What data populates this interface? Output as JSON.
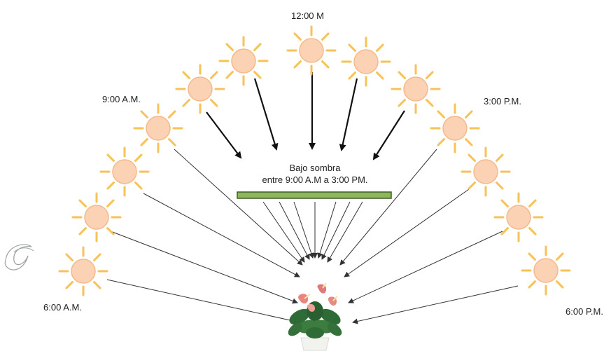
{
  "time_labels": {
    "noon": "12:00 M",
    "nine_am": "9:00 A.M.",
    "three_pm": "3:00 P.M.",
    "six_am": "6:00 A.M.",
    "six_pm": "6:00 P.M."
  },
  "shade_caption": {
    "line1": "Bajo sombra",
    "line2": "entre 9:00 A.M a 3:00 PM."
  },
  "colors": {
    "sun_fill": "#fbd2b3",
    "sun_stroke": "#f5b98c",
    "sun_rays": "#f7c257",
    "shade_bar": "#8cb85a",
    "shade_bar_border": "#3e5e25",
    "arrow_dark": "#111111",
    "arrow_light": "#333333"
  },
  "icons": {
    "sun": "sun-icon",
    "plant": "anthurium-plant-icon",
    "corner": "leaf-swirl-icon"
  }
}
